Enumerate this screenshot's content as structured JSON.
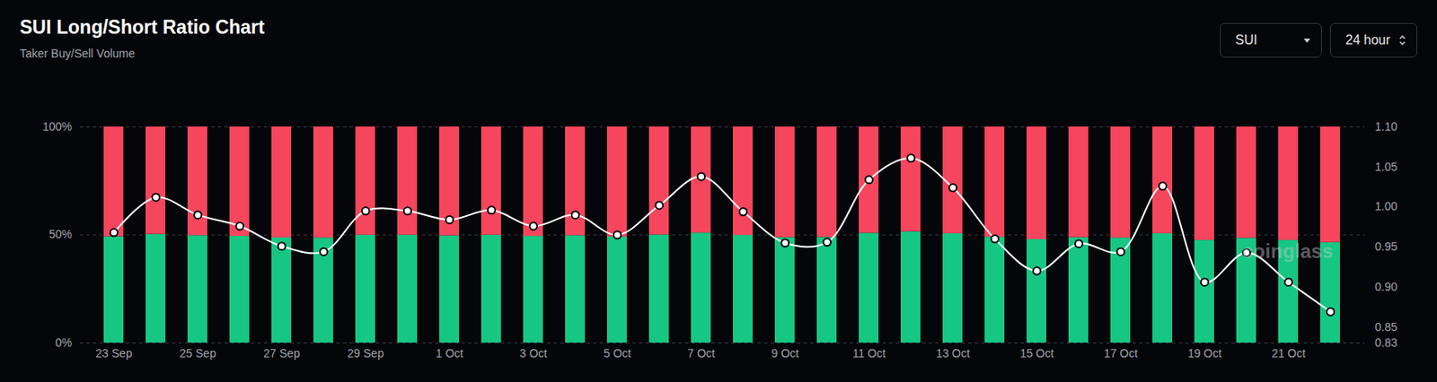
{
  "chart_data": {
    "type": "bar",
    "title": "SUI Long/Short Ratio Chart",
    "subtitle": "Taker Buy/Sell Volume",
    "controls": [
      "SUI",
      "24 hour"
    ],
    "watermark": "coinglass",
    "categories": [
      "23 Sep",
      null,
      "25 Sep",
      null,
      "27 Sep",
      null,
      "29 Sep",
      null,
      "1 Oct",
      null,
      "3 Oct",
      null,
      "5 Oct",
      null,
      "7 Oct",
      null,
      "9 Oct",
      null,
      "11 Oct",
      null,
      "13 Oct",
      null,
      "15 Oct",
      null,
      "17 Oct",
      null,
      "19 Oct",
      null,
      "21 Oct",
      null
    ],
    "stacked": true,
    "series": [
      {
        "color": "#16c784",
        "values": [
          49.2,
          50.3,
          49.7,
          49.4,
          48.7,
          48.6,
          49.9,
          49.9,
          49.6,
          49.9,
          49.4,
          49.7,
          49.1,
          50.0,
          50.9,
          49.8,
          48.8,
          48.9,
          50.8,
          51.5,
          50.6,
          49.0,
          47.9,
          48.8,
          48.6,
          50.6,
          47.5,
          48.5,
          47.5,
          46.5
        ]
      },
      {
        "color": "#f6465d",
        "values": [
          50.8,
          49.7,
          50.3,
          50.6,
          51.3,
          51.4,
          50.1,
          50.1,
          50.4,
          50.1,
          50.6,
          50.3,
          50.9,
          50.0,
          49.1,
          50.2,
          51.2,
          51.1,
          49.2,
          48.5,
          49.4,
          51.0,
          52.1,
          51.2,
          51.4,
          49.4,
          52.5,
          51.5,
          52.5,
          53.5
        ]
      },
      {
        "type": "line",
        "axis": "y2",
        "color": "#ffffff",
        "marker": "circle",
        "values": [
          0.968,
          1.012,
          0.99,
          0.976,
          0.951,
          0.944,
          0.995,
          0.995,
          0.984,
          0.996,
          0.976,
          0.99,
          0.965,
          1.002,
          1.038,
          0.994,
          0.955,
          0.956,
          1.034,
          1.061,
          1.024,
          0.96,
          0.92,
          0.954,
          0.944,
          1.026,
          0.906,
          0.943,
          0.906,
          0.869
        ]
      }
    ],
    "ylim": [
      0,
      100
    ],
    "yticks": [
      {
        "value": 0,
        "label": "0%"
      },
      {
        "value": 50,
        "label": "50%"
      },
      {
        "value": 100,
        "label": "100%"
      }
    ],
    "y2lim": [
      0.83,
      1.1
    ],
    "y2ticks": [
      0.83,
      0.85,
      {
        "value": 0.9,
        "label": "0.90"
      },
      0.95,
      {
        "value": 1.0,
        "label": "1.00"
      },
      1.05,
      {
        "value": 1.1,
        "label": "1.10"
      }
    ],
    "grid": true
  }
}
